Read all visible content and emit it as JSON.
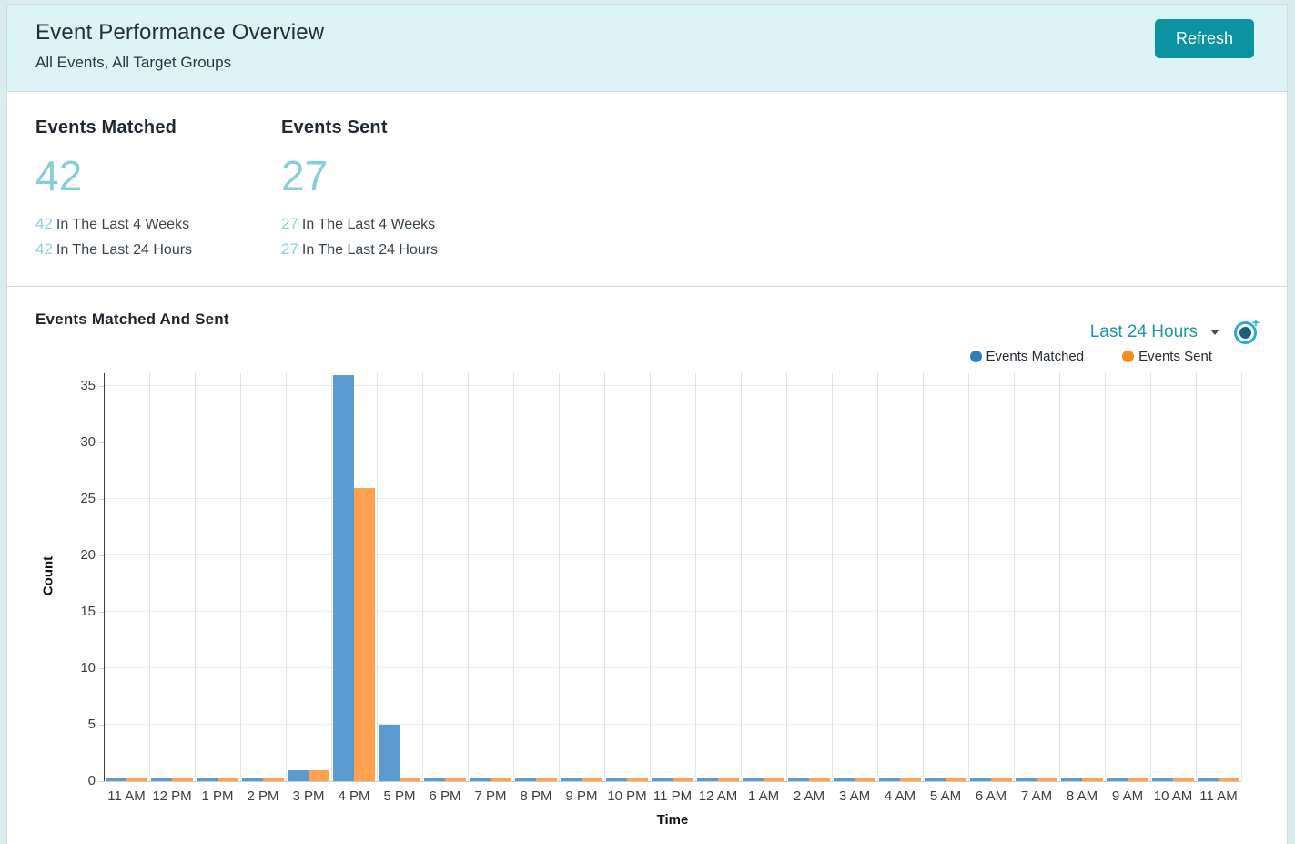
{
  "header": {
    "title": "Event Performance Overview",
    "subtitle": "All Events, All Target Groups",
    "refresh_label": "Refresh"
  },
  "stats": {
    "0": {
      "label": "Events Matched",
      "value": "42",
      "row1_value": "42",
      "row1_text": "In The Last 4 Weeks",
      "row2_value": "42",
      "row2_text": "In The Last 24 Hours"
    },
    "1": {
      "label": "Events Sent",
      "value": "27",
      "row1_value": "27",
      "row1_text": "In The Last 4 Weeks",
      "row2_value": "27",
      "row2_text": "In The Last 24 Hours"
    }
  },
  "chart_section": {
    "title": "Events Matched And Sent",
    "range_selector_value": "Last 24 Hours",
    "legend": [
      {
        "label": "Events Matched",
        "color": "#2e7fc2"
      },
      {
        "label": "Events Sent",
        "color": "#f78b1f"
      }
    ]
  },
  "chart_data": {
    "type": "bar",
    "title": "Events Matched And Sent",
    "xlabel": "Time",
    "ylabel": "Count",
    "ylim": [
      0,
      36
    ],
    "yticks": [
      0,
      5,
      10,
      15,
      20,
      25,
      30,
      35
    ],
    "grid": true,
    "legend_position": "top-right",
    "categories": [
      "11 AM",
      "12 PM",
      "1 PM",
      "2 PM",
      "3 PM",
      "4 PM",
      "5 PM",
      "6 PM",
      "7 PM",
      "8 PM",
      "9 PM",
      "10 PM",
      "11 PM",
      "12 AM",
      "1 AM",
      "2 AM",
      "3 AM",
      "4 AM",
      "5 AM",
      "6 AM",
      "7 AM",
      "8 AM",
      "9 AM",
      "10 AM",
      "11 AM"
    ],
    "series": [
      {
        "name": "Events Matched",
        "color": "#5b9bd0",
        "values": [
          0,
          0,
          0,
          0,
          1,
          36,
          5,
          0,
          0,
          0,
          0,
          0,
          0,
          0,
          0,
          0,
          0,
          0,
          0,
          0,
          0,
          0,
          0,
          0,
          0
        ]
      },
      {
        "name": "Events Sent",
        "color": "#ffa14f",
        "values": [
          0,
          0,
          0,
          0,
          1,
          26,
          0,
          0,
          0,
          0,
          0,
          0,
          0,
          0,
          0,
          0,
          0,
          0,
          0,
          0,
          0,
          0,
          0,
          0,
          0
        ]
      }
    ]
  },
  "colors": {
    "accent_teal": "#0c93a1",
    "light_teal_number": "#87ced6",
    "header_bg": "#dcf3f8",
    "page_bg": "#d9edef"
  }
}
